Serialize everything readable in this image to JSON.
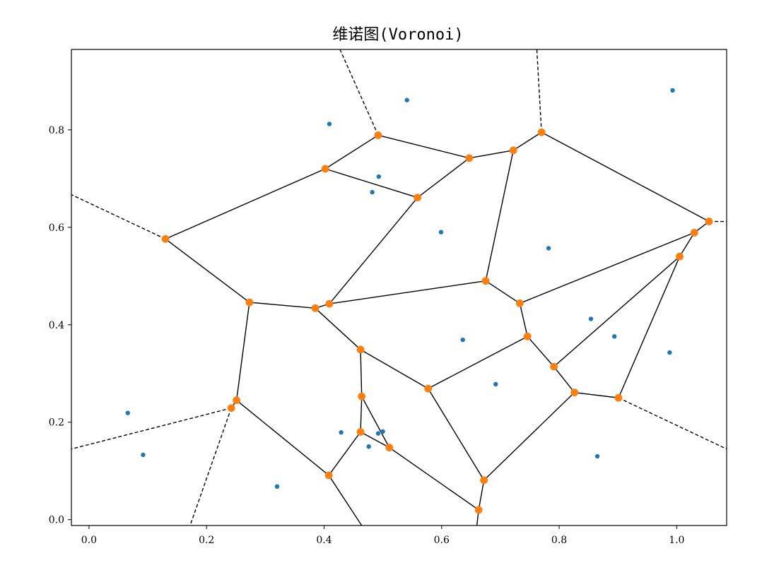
{
  "chart_data": {
    "type": "scatter",
    "title": "维诺图(Voronoi)",
    "xlabel": "",
    "ylabel": "",
    "xlim": [
      -0.03,
      1.085
    ],
    "ylim": [
      -0.012,
      0.965
    ],
    "x_ticks": [
      0.0,
      0.2,
      0.4,
      0.6,
      0.8,
      1.0
    ],
    "x_tick_labels": [
      "0.0",
      "0.2",
      "0.4",
      "0.6",
      "0.8",
      "1.0"
    ],
    "y_ticks": [
      0.0,
      0.2,
      0.4,
      0.6,
      0.8
    ],
    "y_tick_labels": [
      "0.0",
      "0.2",
      "0.4",
      "0.6",
      "0.8"
    ],
    "grid": false,
    "colors": {
      "points": "#1f77b4",
      "vertices": "#ff7f0e",
      "ridges": "#000000"
    },
    "points": [
      [
        0.409,
        0.812
      ],
      [
        0.541,
        0.861
      ],
      [
        0.993,
        0.881
      ],
      [
        0.493,
        0.704
      ],
      [
        0.482,
        0.672
      ],
      [
        0.599,
        0.59
      ],
      [
        0.782,
        0.557
      ],
      [
        0.854,
        0.412
      ],
      [
        0.894,
        0.376
      ],
      [
        0.636,
        0.369
      ],
      [
        0.988,
        0.343
      ],
      [
        0.692,
        0.278
      ],
      [
        0.066,
        0.219
      ],
      [
        0.429,
        0.179
      ],
      [
        0.5,
        0.181
      ],
      [
        0.492,
        0.177
      ],
      [
        0.476,
        0.15
      ],
      [
        0.092,
        0.133
      ],
      [
        0.865,
        0.13
      ],
      [
        0.32,
        0.068
      ]
    ],
    "vertices": [
      [
        0.492,
        0.789
      ],
      [
        0.647,
        0.742
      ],
      [
        0.722,
        0.758
      ],
      [
        0.77,
        0.795
      ],
      [
        0.402,
        0.72
      ],
      [
        0.559,
        0.661
      ],
      [
        0.13,
        0.576
      ],
      [
        1.055,
        0.612
      ],
      [
        1.03,
        0.589
      ],
      [
        1.005,
        0.54
      ],
      [
        0.675,
        0.49
      ],
      [
        0.733,
        0.444
      ],
      [
        0.273,
        0.446
      ],
      [
        0.385,
        0.434
      ],
      [
        0.409,
        0.443
      ],
      [
        0.746,
        0.376
      ],
      [
        0.462,
        0.349
      ],
      [
        0.577,
        0.269
      ],
      [
        0.791,
        0.314
      ],
      [
        0.826,
        0.261
      ],
      [
        0.901,
        0.25
      ],
      [
        0.464,
        0.253
      ],
      [
        0.251,
        0.245
      ],
      [
        0.242,
        0.229
      ],
      [
        0.462,
        0.18
      ],
      [
        0.511,
        0.148
      ],
      [
        0.408,
        0.091
      ],
      [
        0.672,
        0.081
      ],
      [
        0.663,
        0.02
      ]
    ],
    "ridges": [
      [
        0.492,
        0.789,
        0.402,
        0.72
      ],
      [
        0.492,
        0.789,
        0.647,
        0.742
      ],
      [
        0.647,
        0.742,
        0.722,
        0.758
      ],
      [
        0.722,
        0.758,
        0.77,
        0.795
      ],
      [
        0.402,
        0.72,
        0.559,
        0.661
      ],
      [
        0.647,
        0.742,
        0.559,
        0.661
      ],
      [
        0.402,
        0.72,
        0.13,
        0.576
      ],
      [
        0.77,
        0.795,
        1.055,
        0.612
      ],
      [
        1.055,
        0.612,
        1.03,
        0.589
      ],
      [
        1.03,
        0.589,
        1.005,
        0.54
      ],
      [
        0.559,
        0.661,
        0.409,
        0.443
      ],
      [
        0.722,
        0.758,
        0.675,
        0.49
      ],
      [
        0.13,
        0.576,
        0.273,
        0.446
      ],
      [
        0.273,
        0.446,
        0.385,
        0.434
      ],
      [
        0.385,
        0.434,
        0.409,
        0.443
      ],
      [
        0.409,
        0.443,
        0.675,
        0.49
      ],
      [
        0.675,
        0.49,
        0.733,
        0.444
      ],
      [
        0.733,
        0.444,
        1.03,
        0.589
      ],
      [
        0.733,
        0.444,
        0.746,
        0.376
      ],
      [
        0.746,
        0.376,
        0.791,
        0.314
      ],
      [
        0.791,
        0.314,
        1.005,
        0.54
      ],
      [
        0.791,
        0.314,
        0.826,
        0.261
      ],
      [
        0.826,
        0.261,
        0.901,
        0.25
      ],
      [
        0.901,
        0.25,
        1.005,
        0.54
      ],
      [
        0.746,
        0.376,
        0.577,
        0.269
      ],
      [
        0.385,
        0.434,
        0.462,
        0.349
      ],
      [
        0.462,
        0.349,
        0.577,
        0.269
      ],
      [
        0.462,
        0.349,
        0.464,
        0.253
      ],
      [
        0.464,
        0.253,
        0.462,
        0.18
      ],
      [
        0.464,
        0.253,
        0.511,
        0.148
      ],
      [
        0.462,
        0.18,
        0.511,
        0.148
      ],
      [
        0.462,
        0.18,
        0.408,
        0.091
      ],
      [
        0.273,
        0.446,
        0.251,
        0.245
      ],
      [
        0.251,
        0.245,
        0.242,
        0.229
      ],
      [
        0.251,
        0.245,
        0.408,
        0.091
      ],
      [
        0.577,
        0.269,
        0.672,
        0.081
      ],
      [
        0.672,
        0.081,
        0.826,
        0.261
      ],
      [
        0.672,
        0.081,
        0.663,
        0.02
      ],
      [
        0.511,
        0.148,
        0.663,
        0.02
      ],
      [
        0.408,
        0.091,
        0.464,
        -0.012
      ],
      [
        0.663,
        0.02,
        0.66,
        -0.012
      ]
    ],
    "ridges_dashed": [
      [
        0.492,
        0.789,
        0.427,
        0.965
      ],
      [
        0.77,
        0.795,
        0.762,
        0.965
      ],
      [
        0.13,
        0.576,
        -0.03,
        0.667
      ],
      [
        1.055,
        0.612,
        1.085,
        0.612
      ],
      [
        0.901,
        0.25,
        1.085,
        0.145
      ],
      [
        0.242,
        0.229,
        -0.03,
        0.145
      ],
      [
        0.242,
        0.229,
        0.172,
        -0.012
      ]
    ]
  }
}
